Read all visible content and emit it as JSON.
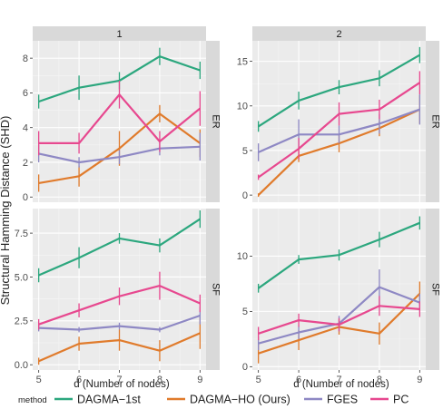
{
  "chart_data": {
    "type": "line",
    "ylabel": "Structural Hamming Distance (SHD)",
    "xlabel": "d (Number of nodes)",
    "x": [
      5,
      6,
      7,
      8,
      9
    ],
    "column_strips": [
      "1",
      "2"
    ],
    "row_strips": [
      "ER",
      "SF"
    ],
    "legend": {
      "title": "method",
      "position": "bottom",
      "entries": [
        "DAGMA−1st",
        "DAGMA−HO (Ours)",
        "FGES",
        "PC"
      ]
    },
    "colors": {
      "DAGMA−1st": "#2ca77e",
      "DAGMA−HO (Ours)": "#e07b2c",
      "FGES": "#8e88c4",
      "PC": "#e7488f"
    },
    "grid": true,
    "panels": [
      {
        "col": "1",
        "row": "ER",
        "ylim": [
          -0.3,
          9.0
        ],
        "yticks": [
          0,
          2,
          4,
          6,
          8
        ],
        "ytick_labels": [
          "0",
          "2",
          "4",
          "6",
          "8"
        ],
        "series": [
          {
            "name": "DAGMA−1st",
            "values": [
              5.5,
              6.3,
              6.7,
              8.1,
              7.3
            ],
            "err": [
              0.4,
              0.7,
              0.5,
              0.5,
              0.5
            ]
          },
          {
            "name": "DAGMA−HO (Ours)",
            "values": [
              0.8,
              1.2,
              2.8,
              4.8,
              3.1
            ],
            "err": [
              0.5,
              0.6,
              1.0,
              0.5,
              0.8
            ]
          },
          {
            "name": "FGES",
            "values": [
              2.5,
              2.0,
              2.3,
              2.8,
              2.9
            ],
            "err": [
              0.5,
              0.3,
              0.4,
              0.4,
              0.8
            ]
          },
          {
            "name": "PC",
            "values": [
              3.1,
              3.1,
              5.9,
              3.2,
              5.1
            ],
            "err": [
              0.7,
              0.6,
              0.8,
              0.6,
              1.0
            ]
          }
        ]
      },
      {
        "col": "2",
        "row": "ER",
        "ylim": [
          -0.8,
          17.3
        ],
        "yticks": [
          0,
          5,
          10,
          15
        ],
        "ytick_labels": [
          "0",
          "5",
          "10",
          "15"
        ],
        "series": [
          {
            "name": "DAGMA−1st",
            "values": [
              7.7,
              10.6,
              12.1,
              13.1,
              15.7
            ],
            "err": [
              0.6,
              1.0,
              0.8,
              0.9,
              0.9
            ]
          },
          {
            "name": "DAGMA−HO (Ours)",
            "values": [
              0.0,
              4.4,
              5.8,
              7.5,
              9.6
            ],
            "err": [
              0.2,
              0.7,
              1.0,
              0.9,
              1.6
            ]
          },
          {
            "name": "FGES",
            "values": [
              4.8,
              6.8,
              6.8,
              8.0,
              9.6
            ],
            "err": [
              1.0,
              1.7,
              1.0,
              1.1,
              1.7
            ]
          },
          {
            "name": "PC",
            "values": [
              2.0,
              5.2,
              9.1,
              9.6,
              12.6
            ],
            "err": [
              0.3,
              1.2,
              1.3,
              1.1,
              1.3
            ]
          }
        ]
      },
      {
        "col": "1",
        "row": "SF",
        "ylim": [
          -0.3,
          8.9
        ],
        "yticks": [
          0,
          2.5,
          5,
          7.5
        ],
        "ytick_labels": [
          "0.0",
          "2.5",
          "5.0",
          "7.5"
        ],
        "series": [
          {
            "name": "DAGMA−1st",
            "values": [
              5.1,
              6.1,
              7.2,
              6.8,
              8.3
            ],
            "err": [
              0.4,
              0.6,
              0.3,
              0.4,
              0.5
            ]
          },
          {
            "name": "DAGMA−HO (Ours)",
            "values": [
              0.2,
              1.2,
              1.4,
              0.8,
              1.8
            ],
            "err": [
              0.2,
              0.4,
              0.6,
              0.6,
              0.9
            ]
          },
          {
            "name": "FGES",
            "values": [
              2.1,
              2.0,
              2.2,
              2.0,
              2.8
            ],
            "err": [
              0.2,
              0.15,
              0.2,
              0.15,
              0.5
            ]
          },
          {
            "name": "PC",
            "values": [
              2.3,
              3.1,
              3.9,
              4.5,
              3.5
            ],
            "err": [
              0.3,
              0.4,
              0.5,
              0.8,
              0.5
            ]
          }
        ]
      },
      {
        "col": "2",
        "row": "SF",
        "ylim": [
          -0.3,
          14.3
        ],
        "yticks": [
          0,
          5,
          10
        ],
        "ytick_labels": [
          "0",
          "5",
          "10"
        ],
        "series": [
          {
            "name": "DAGMA−1st",
            "values": [
              7.1,
              9.7,
              10.1,
              11.5,
              13.0
            ],
            "err": [
              0.4,
              0.4,
              0.5,
              0.7,
              0.6
            ]
          },
          {
            "name": "DAGMA−HO (Ours)",
            "values": [
              1.2,
              2.4,
              3.6,
              3.0,
              6.6
            ],
            "err": [
              0.9,
              0.9,
              0.7,
              1.0,
              1.1
            ]
          },
          {
            "name": "FGES",
            "values": [
              2.1,
              3.1,
              3.9,
              7.2,
              5.8
            ],
            "err": [
              0.6,
              0.6,
              0.7,
              1.6,
              0.8
            ]
          },
          {
            "name": "PC",
            "values": [
              3.0,
              4.2,
              3.8,
              5.5,
              5.2
            ],
            "err": [
              0.6,
              0.6,
              0.6,
              0.9,
              0.7
            ]
          }
        ]
      }
    ]
  }
}
